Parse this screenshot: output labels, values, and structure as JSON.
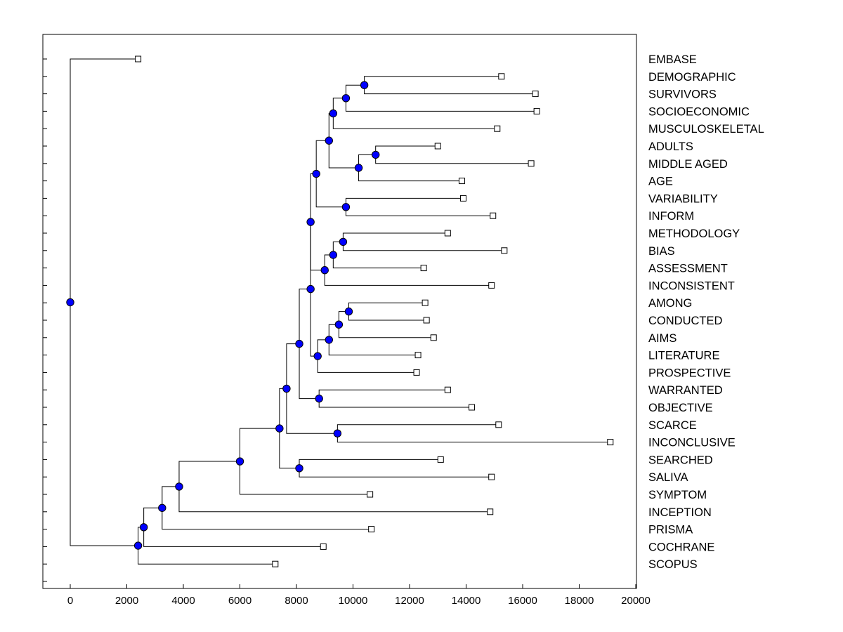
{
  "chart_data": {
    "type": "dendrogram",
    "orientation": "horizontal",
    "x_ticks": [
      0,
      2000,
      4000,
      6000,
      8000,
      10000,
      12000,
      14000,
      16000,
      18000,
      20000
    ],
    "xlim": [
      -950,
      20050
    ],
    "leaves": [
      {
        "label": "EMBASE",
        "x": 2400
      },
      {
        "label": "DEMOGRAPHIC",
        "x": 15250
      },
      {
        "label": "SURVIVORS",
        "x": 16450
      },
      {
        "label": "SOCIOECONOMIC",
        "x": 16500
      },
      {
        "label": "MUSCULOSKELETAL",
        "x": 15100
      },
      {
        "label": "ADULTS",
        "x": 13000
      },
      {
        "label": "MIDDLE AGED",
        "x": 16300
      },
      {
        "label": "AGE",
        "x": 13850
      },
      {
        "label": "VARIABILITY",
        "x": 13900
      },
      {
        "label": "INFORM",
        "x": 14950
      },
      {
        "label": "METHODOLOGY",
        "x": 13350
      },
      {
        "label": "BIAS",
        "x": 15350
      },
      {
        "label": "ASSESSMENT",
        "x": 12500
      },
      {
        "label": "INCONSISTENT",
        "x": 14900
      },
      {
        "label": "AMONG",
        "x": 12550
      },
      {
        "label": "CONDUCTED",
        "x": 12600
      },
      {
        "label": "AIMS",
        "x": 12850
      },
      {
        "label": "LITERATURE",
        "x": 12300
      },
      {
        "label": "PROSPECTIVE",
        "x": 12250
      },
      {
        "label": "WARRANTED",
        "x": 13350
      },
      {
        "label": "OBJECTIVE",
        "x": 14200
      },
      {
        "label": "SCARCE",
        "x": 15150
      },
      {
        "label": "INCONCLUSIVE",
        "x": 19100
      },
      {
        "label": "SEARCHED",
        "x": 13100
      },
      {
        "label": "SALIVA",
        "x": 14900
      },
      {
        "label": "SYMPTOM",
        "x": 10600
      },
      {
        "label": "INCEPTION",
        "x": 14850
      },
      {
        "label": "PRISMA",
        "x": 10650
      },
      {
        "label": "COCHRANE",
        "x": 8950
      },
      {
        "label": "SCOPUS",
        "x": 7250
      }
    ],
    "merges": [
      {
        "x": 10400,
        "left": "L1",
        "right": "L2"
      },
      {
        "x": 9750,
        "left": "M0",
        "right": "L3"
      },
      {
        "x": 9300,
        "left": "M1",
        "right": "L4"
      },
      {
        "x": 10800,
        "left": "L5",
        "right": "L6"
      },
      {
        "x": 10200,
        "left": "M3",
        "right": "L7"
      },
      {
        "x": 9150,
        "left": "M2",
        "right": "M4"
      },
      {
        "x": 9750,
        "left": "L8",
        "right": "L9"
      },
      {
        "x": 8700,
        "left": "M5",
        "right": "M6"
      },
      {
        "x": 9650,
        "left": "L10",
        "right": "L11"
      },
      {
        "x": 9300,
        "left": "M8",
        "right": "L12"
      },
      {
        "x": 9000,
        "left": "M9",
        "right": "L13"
      },
      {
        "x": 8500,
        "left": "M7",
        "right": "M10"
      },
      {
        "x": 9850,
        "left": "L14",
        "right": "L15"
      },
      {
        "x": 9500,
        "left": "M12",
        "right": "L16"
      },
      {
        "x": 9150,
        "left": "M13",
        "right": "L17"
      },
      {
        "x": 8750,
        "left": "M14",
        "right": "L18"
      },
      {
        "x": 8500,
        "left": "M11",
        "right": "M15"
      },
      {
        "x": 8800,
        "left": "L19",
        "right": "L20"
      },
      {
        "x": 8100,
        "left": "M16",
        "right": "M17"
      },
      {
        "x": 9450,
        "left": "L21",
        "right": "L22"
      },
      {
        "x": 7650,
        "left": "M18",
        "right": "M19"
      },
      {
        "x": 8100,
        "left": "L23",
        "right": "L24"
      },
      {
        "x": 7400,
        "left": "M20",
        "right": "M21"
      },
      {
        "x": 6000,
        "left": "M22",
        "right": "L25"
      },
      {
        "x": 3850,
        "left": "M23",
        "right": "L26"
      },
      {
        "x": 3250,
        "left": "M24",
        "right": "L27"
      },
      {
        "x": 2600,
        "left": "M25",
        "right": "L28"
      },
      {
        "x": 2400,
        "left": "M26",
        "right": "L29"
      },
      {
        "x": 0,
        "left": "L0",
        "right": "M27"
      }
    ],
    "colors": {
      "node_fill": "#0000ff",
      "leaf_fill": "#ffffff",
      "line": "#000000"
    }
  }
}
